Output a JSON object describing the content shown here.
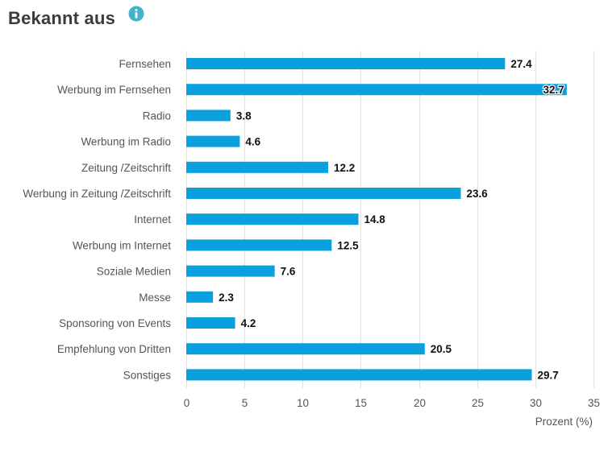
{
  "header": {
    "title": "Bekannt aus",
    "info_icon": "info-icon"
  },
  "colors": {
    "bar": "#0aa0de",
    "grid": "#e3e3e3",
    "info": "#43b3c9"
  },
  "chart_data": {
    "type": "bar",
    "orientation": "horizontal",
    "title": "Bekannt aus",
    "xlabel": "Prozent (%)",
    "ylabel": "",
    "xlim": [
      0,
      35
    ],
    "xticks": [
      0,
      5,
      10,
      15,
      20,
      25,
      30,
      35
    ],
    "grid": true,
    "categories": [
      "Fernsehen",
      "Werbung im Fernsehen",
      "Radio",
      "Werbung im Radio",
      "Zeitung /Zeitschrift",
      "Werbung in Zeitung /Zeitschrift",
      "Internet",
      "Werbung im Internet",
      "Soziale Medien",
      "Messe",
      "Sponsoring von Events",
      "Empfehlung von Dritten",
      "Sonstiges"
    ],
    "values": [
      27.4,
      32.7,
      3.8,
      4.6,
      12.2,
      23.6,
      14.8,
      12.5,
      7.6,
      2.3,
      4.2,
      20.5,
      29.7
    ]
  }
}
